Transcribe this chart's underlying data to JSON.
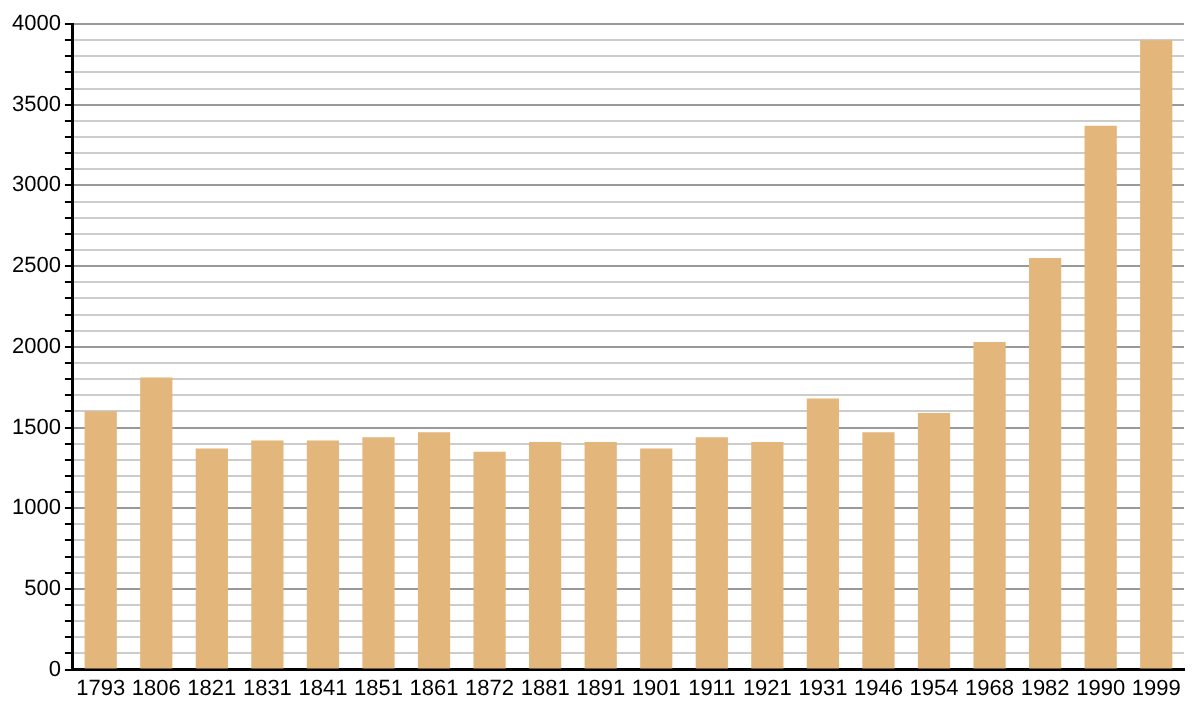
{
  "chart_data": {
    "type": "bar",
    "categories": [
      "1793",
      "1806",
      "1821",
      "1831",
      "1841",
      "1851",
      "1861",
      "1872",
      "1881",
      "1891",
      "1901",
      "1911",
      "1921",
      "1931",
      "1946",
      "1954",
      "1968",
      "1982",
      "1990",
      "1999"
    ],
    "values": [
      1600,
      1810,
      1370,
      1420,
      1420,
      1440,
      1470,
      1350,
      1410,
      1410,
      1370,
      1440,
      1410,
      1680,
      1470,
      1590,
      2030,
      2550,
      3370,
      3900
    ],
    "color": "#e3b67b",
    "ylim": [
      0,
      4000
    ],
    "yticks": [
      0,
      {
        "value": 100,
        "label": null
      },
      {
        "value": 200,
        "label": null
      },
      {
        "value": 300,
        "label": null
      },
      {
        "value": 400,
        "label": null
      },
      500,
      {
        "value": 600,
        "label": null
      },
      {
        "value": 700,
        "label": null
      },
      {
        "value": 800,
        "label": null
      },
      {
        "value": 900,
        "label": null
      },
      1000,
      {
        "value": 1100,
        "label": null
      },
      {
        "value": 1200,
        "label": null
      },
      {
        "value": 1300,
        "label": null
      },
      {
        "value": 1400,
        "label": null
      },
      1500,
      {
        "value": 1600,
        "label": null
      },
      {
        "value": 1700,
        "label": null
      },
      {
        "value": 1800,
        "label": null
      },
      {
        "value": 1900,
        "label": null
      },
      2000,
      {
        "value": 2100,
        "label": null
      },
      {
        "value": 2200,
        "label": null
      },
      {
        "value": 2300,
        "label": null
      },
      {
        "value": 2400,
        "label": null
      },
      2500,
      {
        "value": 2600,
        "label": null
      },
      {
        "value": 2700,
        "label": null
      },
      {
        "value": 2800,
        "label": null
      },
      {
        "value": 2900,
        "label": null
      },
      3000,
      {
        "value": 3100,
        "label": null
      },
      {
        "value": 3200,
        "label": null
      },
      {
        "value": 3300,
        "label": null
      },
      {
        "value": 3400,
        "label": null
      },
      3500,
      {
        "value": 3600,
        "label": null
      },
      {
        "value": 3700,
        "label": null
      },
      {
        "value": 3800,
        "label": null
      },
      {
        "value": 3900,
        "label": null
      },
      4000
    ],
    "grid": "y"
  }
}
